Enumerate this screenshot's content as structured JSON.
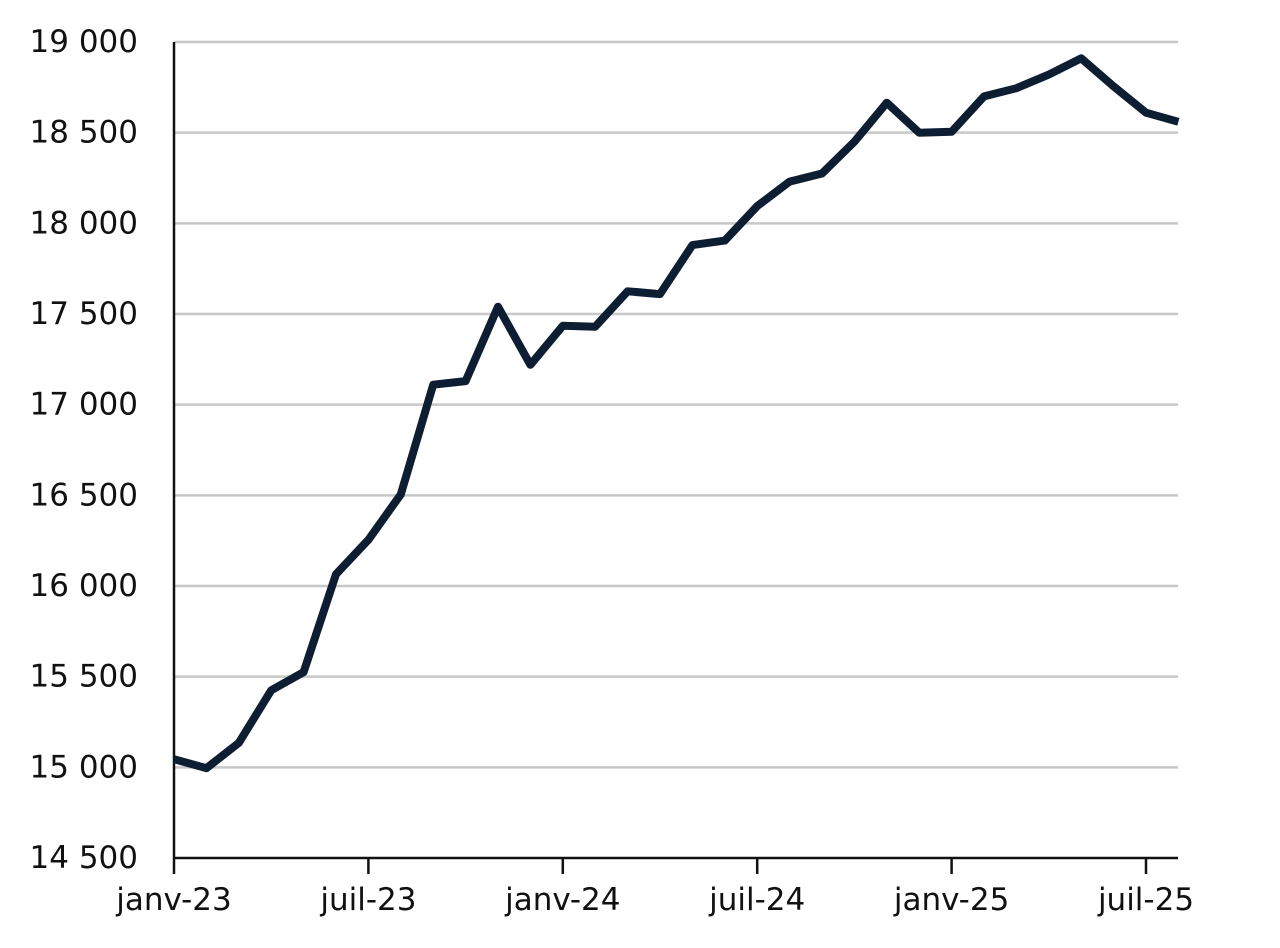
{
  "chart_data": {
    "type": "line",
    "title": "",
    "xlabel": "",
    "ylabel": "",
    "x": [
      "2023-01",
      "2023-02",
      "2023-03",
      "2023-04",
      "2023-05",
      "2023-06",
      "2023-07",
      "2023-08",
      "2023-09",
      "2023-10",
      "2023-11",
      "2023-12",
      "2024-01",
      "2024-02",
      "2024-03",
      "2024-04",
      "2024-05",
      "2024-06",
      "2024-07",
      "2024-08",
      "2024-09",
      "2024-10",
      "2024-11",
      "2024-12",
      "2025-01",
      "2025-02",
      "2025-03",
      "2025-04",
      "2025-05",
      "2025-06",
      "2025-07",
      "2025-08"
    ],
    "series": [
      {
        "color": "#0d1e33",
        "values": [
          15045,
          14995,
          15135,
          15425,
          15525,
          16065,
          16255,
          16505,
          17110,
          17130,
          17540,
          17220,
          17435,
          17430,
          17625,
          17610,
          17880,
          17905,
          18095,
          18230,
          18275,
          18450,
          18665,
          18500,
          18505,
          18700,
          18745,
          18820,
          18910,
          18755,
          18610,
          18560
        ]
      }
    ],
    "ylim": [
      14500,
      19000
    ],
    "yticks": [
      14500,
      15000,
      15500,
      16000,
      16500,
      17000,
      17500,
      18000,
      18500,
      19000
    ],
    "ytick_labels": [
      "14 500",
      "15 000",
      "15 500",
      "16 000",
      "16 500",
      "17 000",
      "17 500",
      "18 000",
      "18 500",
      "19 000"
    ],
    "xticks": [
      "2023-01",
      "2023-07",
      "2024-01",
      "2024-07",
      "2025-01",
      "2025-07"
    ],
    "xtick_labels": [
      "janv-23",
      "juil-23",
      "janv-24",
      "juil-24",
      "janv-25",
      "juil-25"
    ],
    "grid": true,
    "legend": "none"
  }
}
